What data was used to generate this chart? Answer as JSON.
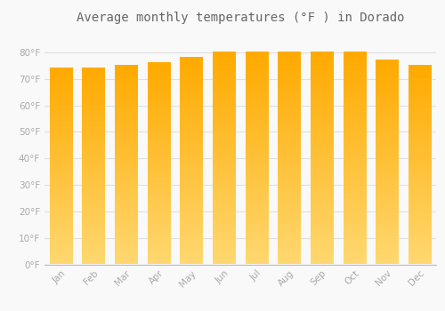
{
  "title": "Average monthly temperatures (°F ) in Dorado",
  "months": [
    "Jan",
    "Feb",
    "Mar",
    "Apr",
    "May",
    "Jun",
    "Jul",
    "Aug",
    "Sep",
    "Oct",
    "Nov",
    "Dec"
  ],
  "values": [
    74,
    74,
    75,
    76,
    78,
    80,
    80,
    80,
    80,
    80,
    77,
    75
  ],
  "bar_color_top": "#FFAA00",
  "bar_color_bottom": "#FFD870",
  "ylim": [
    0,
    88
  ],
  "yticks": [
    0,
    10,
    20,
    30,
    40,
    50,
    60,
    70,
    80
  ],
  "ytick_labels": [
    "0°F",
    "10°F",
    "20°F",
    "30°F",
    "40°F",
    "50°F",
    "60°F",
    "70°F",
    "80°F"
  ],
  "background_color": "#F9F9F9",
  "grid_color": "#E0E0E0",
  "text_color": "#AAAAAA",
  "title_color": "#666666",
  "title_fontsize": 10,
  "tick_fontsize": 7.5,
  "bar_width": 0.7
}
